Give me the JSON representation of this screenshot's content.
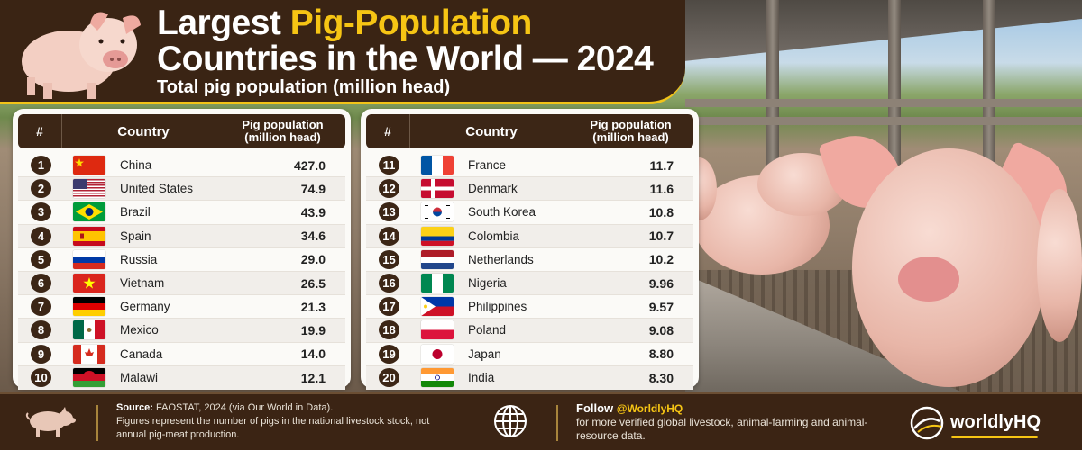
{
  "header": {
    "title_part1": "Largest ",
    "title_highlight": "Pig-Population",
    "title_line2": "Countries in the World — 2024",
    "subtitle": "Total pig population (million head)"
  },
  "colors": {
    "dark_brown": "#3b2414",
    "accent_yellow": "#f6c514",
    "panel_bg": "#fbfaf7"
  },
  "table_header": {
    "rank": "#",
    "country": "Country",
    "population_line1": "Pig population",
    "population_line2": "(million head)"
  },
  "left_table": [
    {
      "rank": "1",
      "country": "China",
      "value": "427.0",
      "flag": "cn"
    },
    {
      "rank": "2",
      "country": "United States",
      "value": "74.9",
      "flag": "us"
    },
    {
      "rank": "3",
      "country": "Brazil",
      "value": "43.9",
      "flag": "br"
    },
    {
      "rank": "4",
      "country": "Spain",
      "value": "34.6",
      "flag": "es"
    },
    {
      "rank": "5",
      "country": "Russia",
      "value": "29.0",
      "flag": "ru"
    },
    {
      "rank": "6",
      "country": "Vietnam",
      "value": "26.5",
      "flag": "vn"
    },
    {
      "rank": "7",
      "country": "Germany",
      "value": "21.3",
      "flag": "de"
    },
    {
      "rank": "8",
      "country": "Mexico",
      "value": "19.9",
      "flag": "mx"
    },
    {
      "rank": "9",
      "country": "Canada",
      "value": "14.0",
      "flag": "ca"
    },
    {
      "rank": "10",
      "country": "Malawi",
      "value": "12.1",
      "flag": "mw"
    }
  ],
  "right_table": [
    {
      "rank": "11",
      "country": "France",
      "value": "11.7",
      "flag": "fr"
    },
    {
      "rank": "12",
      "country": "Denmark",
      "value": "11.6",
      "flag": "dk"
    },
    {
      "rank": "13",
      "country": "South Korea",
      "value": "10.8",
      "flag": "kr"
    },
    {
      "rank": "14",
      "country": "Colombia",
      "value": "10.7",
      "flag": "co"
    },
    {
      "rank": "15",
      "country": "Netherlands",
      "value": "10.2",
      "flag": "nl"
    },
    {
      "rank": "16",
      "country": "Nigeria",
      "value": "9.96",
      "flag": "ng"
    },
    {
      "rank": "17",
      "country": "Philippines",
      "value": "9.57",
      "flag": "ph"
    },
    {
      "rank": "18",
      "country": "Poland",
      "value": "9.08",
      "flag": "pl"
    },
    {
      "rank": "19",
      "country": "Japan",
      "value": "8.80",
      "flag": "jp"
    },
    {
      "rank": "20",
      "country": "India",
      "value": "8.30",
      "flag": "in"
    }
  ],
  "footer": {
    "source_label": "Source:",
    "source_text": " FAOSTAT, 2024 (via Our World in Data).",
    "note": "Figures represent the number of pigs in the national livestock stock, not annual pig-meat production.",
    "follow_label": "Follow ",
    "handle": "@WorldlyHQ",
    "follow_text": "for more verified global livestock, animal-farming and animal-resource data.",
    "brand": "worldlyHQ"
  }
}
